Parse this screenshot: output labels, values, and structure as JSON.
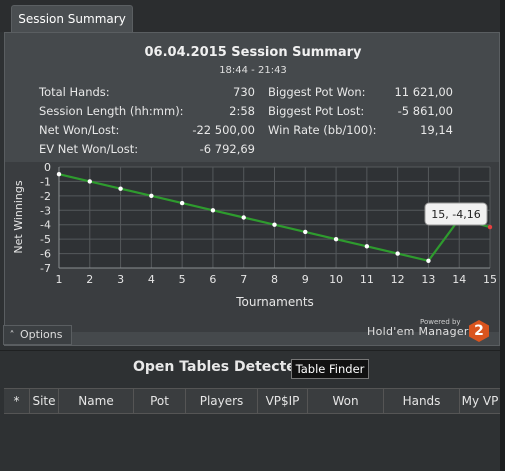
{
  "tab": {
    "label": "Session Summary"
  },
  "summary": {
    "title": "06.04.2015 Session Summary",
    "time_range": "18:44 - 21:43",
    "left": [
      {
        "label": "Total Hands:",
        "value": "730"
      },
      {
        "label": "Session Length (hh:mm):",
        "value": "2:58"
      },
      {
        "label": "Net Won/Lost:",
        "value": "-22 500,00"
      },
      {
        "label": "EV Net Won/Lost:",
        "value": "-6 792,69"
      }
    ],
    "right": [
      {
        "label": "Biggest Pot Won:",
        "value": "11 621,00"
      },
      {
        "label": "Biggest Pot Lost:",
        "value": "-5 861,00"
      },
      {
        "label": "Win Rate (bb/100):",
        "value": "19,14"
      }
    ]
  },
  "chart_data": {
    "type": "line",
    "xlabel": "Tournaments",
    "ylabel": "Net Winnings",
    "x": [
      1,
      2,
      3,
      4,
      5,
      6,
      7,
      8,
      9,
      10,
      11,
      12,
      13,
      14,
      15
    ],
    "series": [
      {
        "values": [
          -0.5,
          -1.0,
          -1.5,
          -2.0,
          -2.5,
          -3.0,
          -3.5,
          -4.0,
          -4.5,
          -5.0,
          -5.5,
          -6.0,
          -6.5,
          -3.6,
          -4.16
        ],
        "color": "#2e9b2e"
      }
    ],
    "xlim": [
      1,
      15
    ],
    "ylim": [
      -7,
      0
    ],
    "xticks": [
      "1",
      "2",
      "3",
      "4",
      "5",
      "6",
      "7",
      "8",
      "9",
      "10",
      "11",
      "12",
      "13",
      "14",
      "15"
    ],
    "yticks": [
      "0",
      "-1",
      "-2",
      "-3",
      "-4",
      "-5",
      "-6",
      "-7"
    ],
    "grid": true,
    "tooltip": "15, -4,16"
  },
  "options": {
    "label": "Options"
  },
  "branding": {
    "powered_by": "Powered by",
    "product": "Hold'em Manager",
    "logo_text": "2"
  },
  "open_tables": {
    "title": "Open Tables Detected",
    "finder_button": "Table Finder",
    "columns": [
      "*",
      "Site",
      "Name",
      "Pot",
      "Players",
      "VP$IP",
      "Won",
      "Hands",
      "My VP"
    ]
  }
}
